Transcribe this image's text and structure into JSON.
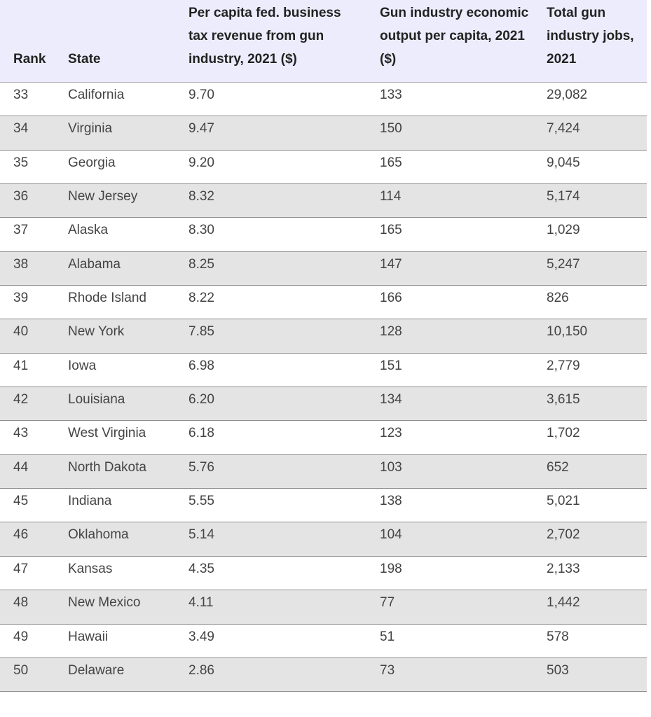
{
  "table": {
    "headers": {
      "rank": "Rank",
      "state": "State",
      "tax_revenue": "Per capita fed. business tax revenue from gun industry, 2021 ($)",
      "economic_output": "Gun industry economic output per capita, 2021 ($)",
      "jobs": "Total gun industry jobs, 2021"
    },
    "rows": [
      {
        "rank": "33",
        "state": "California",
        "tax": "9.70",
        "output": "133",
        "jobs": "29,082"
      },
      {
        "rank": "34",
        "state": "Virginia",
        "tax": "9.47",
        "output": "150",
        "jobs": "7,424"
      },
      {
        "rank": "35",
        "state": "Georgia",
        "tax": "9.20",
        "output": "165",
        "jobs": "9,045"
      },
      {
        "rank": "36",
        "state": "New Jersey",
        "tax": "8.32",
        "output": "114",
        "jobs": "5,174"
      },
      {
        "rank": "37",
        "state": "Alaska",
        "tax": "8.30",
        "output": "165",
        "jobs": "1,029"
      },
      {
        "rank": "38",
        "state": "Alabama",
        "tax": "8.25",
        "output": "147",
        "jobs": "5,247"
      },
      {
        "rank": "39",
        "state": "Rhode Island",
        "tax": "8.22",
        "output": "166",
        "jobs": "826"
      },
      {
        "rank": "40",
        "state": "New York",
        "tax": "7.85",
        "output": "128",
        "jobs": "10,150"
      },
      {
        "rank": "41",
        "state": "Iowa",
        "tax": "6.98",
        "output": "151",
        "jobs": "2,779"
      },
      {
        "rank": "42",
        "state": "Louisiana",
        "tax": "6.20",
        "output": "134",
        "jobs": "3,615"
      },
      {
        "rank": "43",
        "state": "West Virginia",
        "tax": "6.18",
        "output": "123",
        "jobs": "1,702"
      },
      {
        "rank": "44",
        "state": "North Dakota",
        "tax": "5.76",
        "output": "103",
        "jobs": "652"
      },
      {
        "rank": "45",
        "state": "Indiana",
        "tax": "5.55",
        "output": "138",
        "jobs": "5,021"
      },
      {
        "rank": "46",
        "state": "Oklahoma",
        "tax": "5.14",
        "output": "104",
        "jobs": "2,702"
      },
      {
        "rank": "47",
        "state": "Kansas",
        "tax": "4.35",
        "output": "198",
        "jobs": "2,133"
      },
      {
        "rank": "48",
        "state": "New Mexico",
        "tax": "4.11",
        "output": "77",
        "jobs": "1,442"
      },
      {
        "rank": "49",
        "state": "Hawaii",
        "tax": "3.49",
        "output": "51",
        "jobs": "578"
      },
      {
        "rank": "50",
        "state": "Delaware",
        "tax": "2.86",
        "output": "73",
        "jobs": "503"
      }
    ]
  }
}
